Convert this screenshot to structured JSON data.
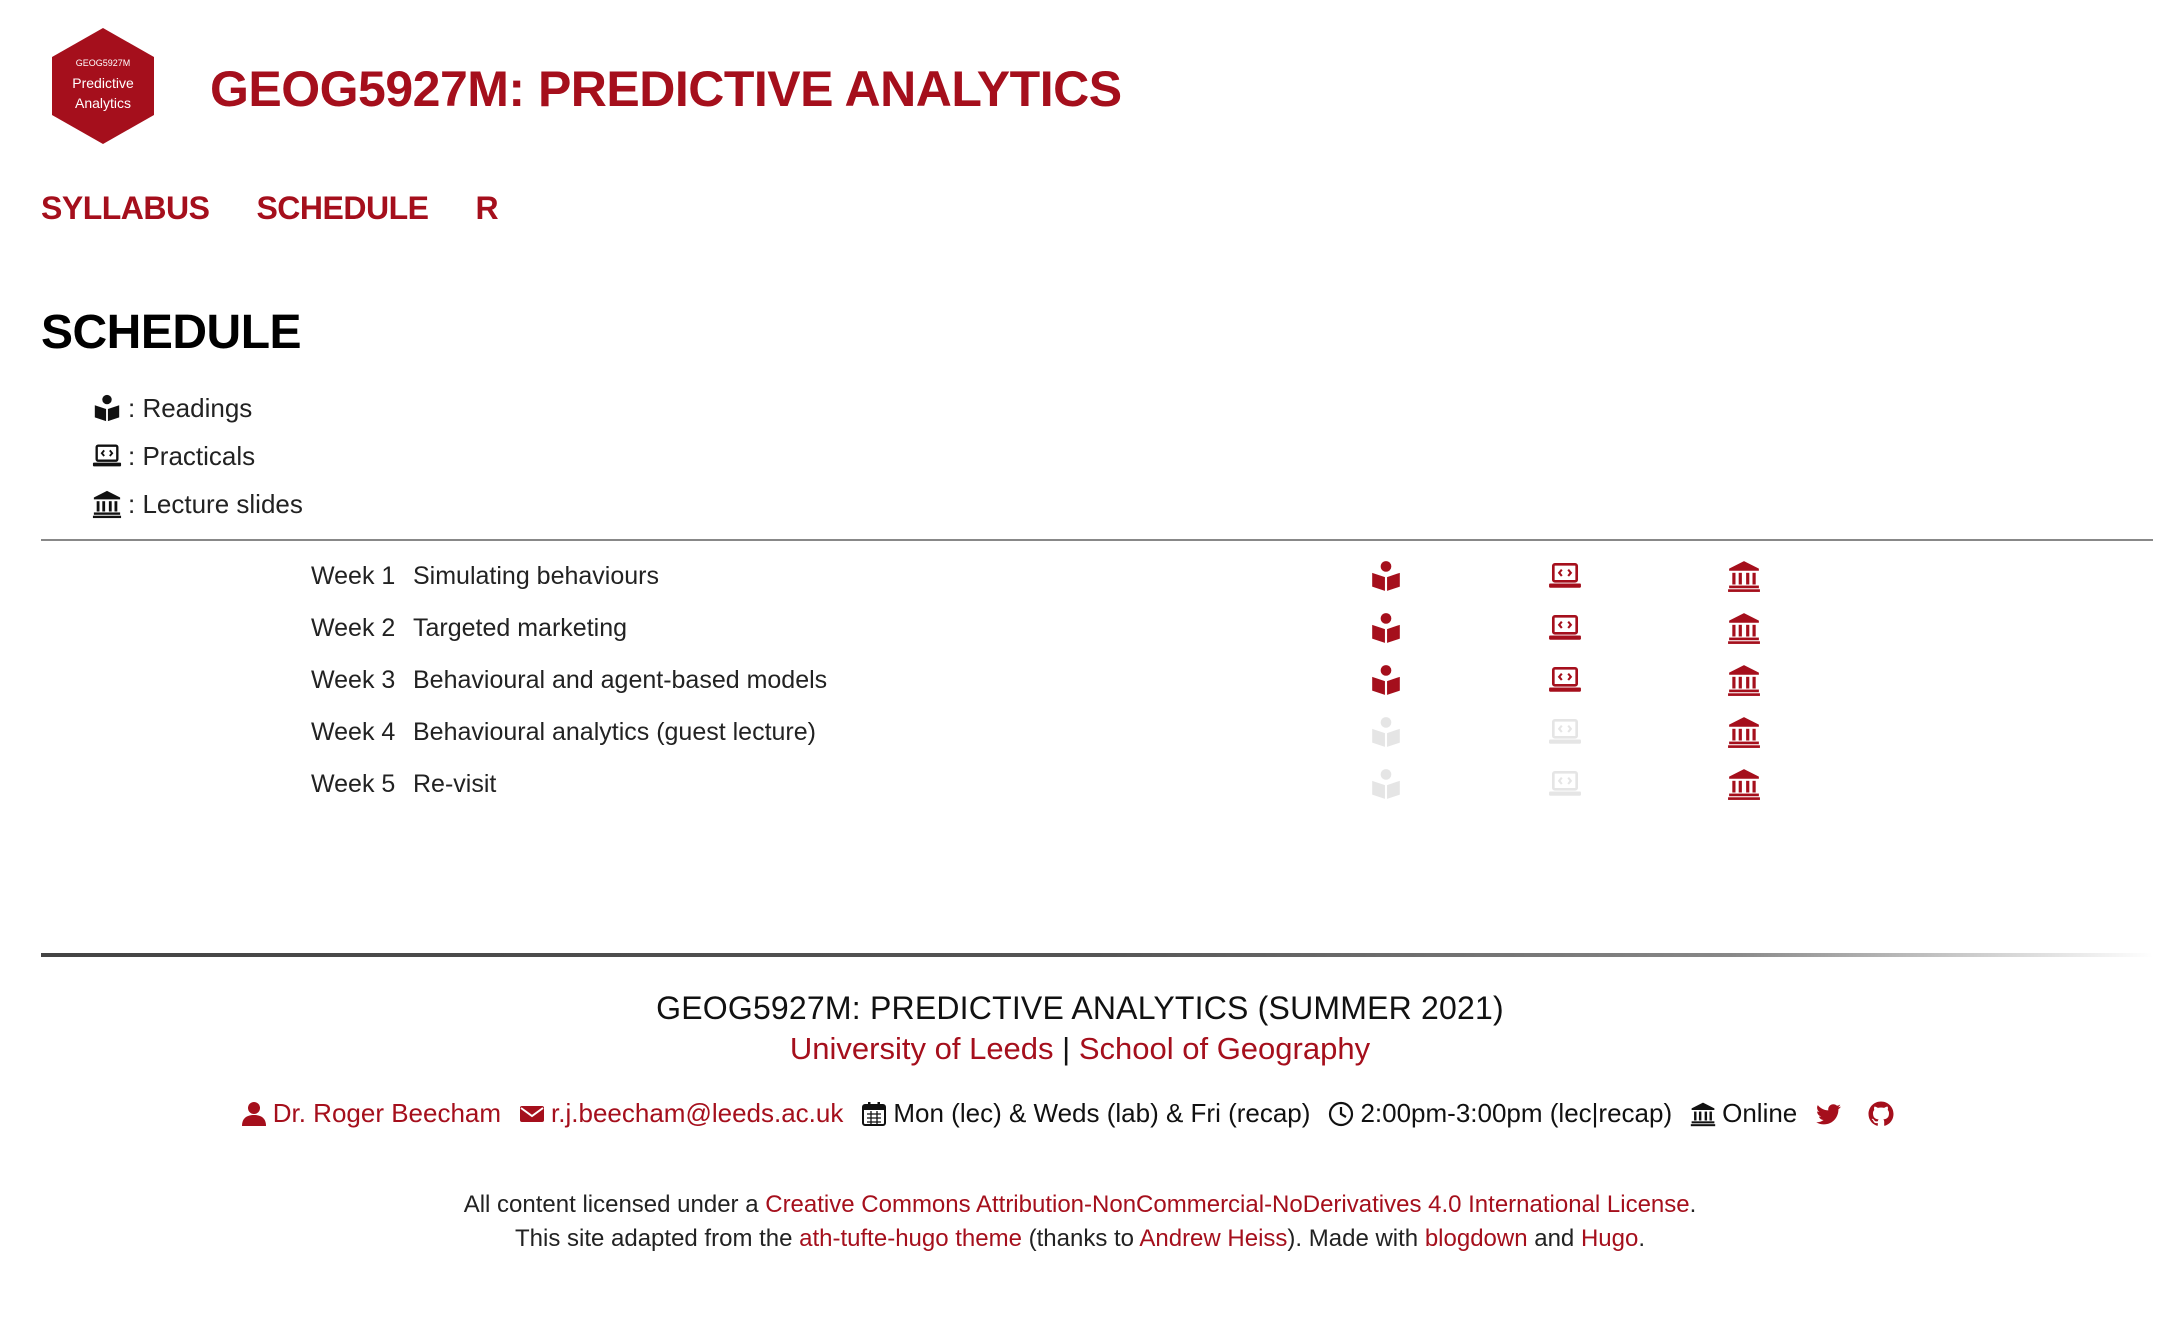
{
  "header": {
    "logo": {
      "line1": "GEOG5927M",
      "line2": "Predictive",
      "line3": "Analytics",
      "color": "#a50f1c"
    },
    "title": "GEOG5927M: PREDICTIVE ANALYTICS"
  },
  "nav": [
    {
      "label": "SYLLABUS"
    },
    {
      "label": "SCHEDULE"
    },
    {
      "label": "R"
    }
  ],
  "page_title": "SCHEDULE",
  "legend": [
    {
      "icon": "book-reader-icon",
      "label": ": Readings"
    },
    {
      "icon": "laptop-code-icon",
      "label": ": Practicals"
    },
    {
      "icon": "university-icon",
      "label": ": Lecture slides"
    }
  ],
  "schedule": [
    {
      "week": "Week 1",
      "topic": "Simulating behaviours",
      "readings": true,
      "practicals": true,
      "slides": true
    },
    {
      "week": "Week 2",
      "topic": "Targeted marketing",
      "readings": true,
      "practicals": true,
      "slides": true
    },
    {
      "week": "Week 3",
      "topic": "Behavioural and agent-based models",
      "readings": true,
      "practicals": true,
      "slides": true
    },
    {
      "week": "Week 4",
      "topic": "Behavioural analytics (guest lecture)",
      "readings": false,
      "practicals": false,
      "slides": true
    },
    {
      "week": "Week 5",
      "topic": "Re-visit",
      "readings": false,
      "practicals": false,
      "slides": true
    }
  ],
  "colors": {
    "accent": "#a50f1c",
    "disabled": "#e5e5e5"
  },
  "footer": {
    "title": "GEOG5927M: PREDICTIVE ANALYTICS (SUMMER 2021)",
    "university": "University of Leeds",
    "separator": " | ",
    "school": "School of Geography",
    "contact": {
      "name": "Dr. Roger Beecham",
      "email": "r.j.beecham@leeds.ac.uk",
      "days": "Mon (lec) & Weds (lab) & Fri (recap)",
      "time": "2:00pm-3:00pm (lec|recap)",
      "location": "Online"
    },
    "license": {
      "prefix": "All content licensed under a ",
      "link": "Creative Commons Attribution-NonCommercial-NoDerivatives 4.0 International License",
      "suffix": "."
    },
    "credits": {
      "p1": "This site adapted from the ",
      "theme": "ath-tufte-hugo theme",
      "p2": " (thanks to ",
      "author": "Andrew Heiss",
      "p3": "). Made with ",
      "blogdown": "blogdown",
      "p4": " and ",
      "hugo": "Hugo",
      "p5": "."
    }
  }
}
